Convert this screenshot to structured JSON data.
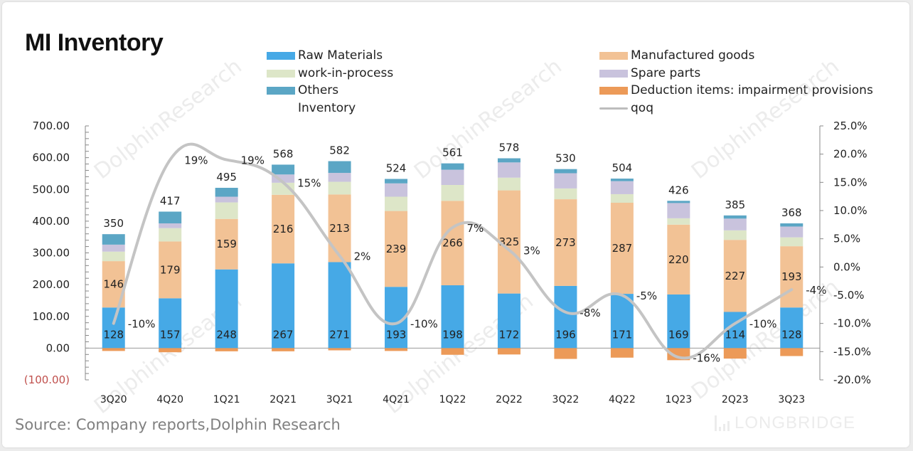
{
  "chart_data": {
    "type": "bar",
    "stacked": true,
    "title": "MI Inventory",
    "categories": [
      "3Q20",
      "4Q20",
      "1Q21",
      "2Q21",
      "3Q21",
      "4Q21",
      "1Q22",
      "2Q22",
      "3Q22",
      "4Q22",
      "1Q23",
      "2Q23",
      "3Q23"
    ],
    "series": [
      {
        "name": "Raw Materials",
        "color": "#46a9e6",
        "values": [
          128,
          157,
          248,
          267,
          271,
          193,
          198,
          172,
          196,
          171,
          169,
          114,
          128
        ],
        "labeled": true
      },
      {
        "name": "Manufactured goods",
        "color": "#f2c295",
        "values": [
          146,
          179,
          159,
          216,
          213,
          239,
          266,
          325,
          273,
          287,
          220,
          227,
          193
        ],
        "labeled": true
      },
      {
        "name": "work-in-process",
        "color": "#dde6c8",
        "values": [
          30,
          42,
          52,
          38,
          40,
          45,
          50,
          40,
          34,
          27,
          20,
          30,
          28
        ]
      },
      {
        "name": "Spare parts",
        "color": "#c9c3dd",
        "values": [
          22,
          15,
          18,
          26,
          28,
          42,
          48,
          48,
          48,
          41,
          48,
          37,
          34
        ]
      },
      {
        "name": "Others",
        "color": "#5ba6c5",
        "values": [
          33,
          37,
          28,
          31,
          37,
          14,
          20,
          13,
          13,
          8,
          7,
          10,
          10
        ]
      },
      {
        "name": "Deduction items: impairment provisions",
        "color": "#ec9a58",
        "values": [
          -9,
          -13,
          -10,
          -10,
          -7,
          -9,
          -21,
          -20,
          -34,
          -30,
          -38,
          -33,
          -25
        ]
      }
    ],
    "totals": {
      "name": "Inventory",
      "values": [
        350,
        417,
        495,
        568,
        582,
        524,
        561,
        578,
        530,
        504,
        426,
        385,
        368
      ]
    },
    "line": {
      "name": "qoq",
      "color": "#c4c4c4",
      "axis": "right",
      "values": [
        -10,
        19,
        19,
        15,
        2,
        -10,
        7,
        3,
        -8,
        -5,
        -16,
        -10,
        -4
      ],
      "labels": [
        "-10%",
        "19%",
        "19%",
        "15%",
        "2%",
        "-10%",
        "7%",
        "3%",
        "-8%",
        "-5%",
        "-16%",
        "-10%",
        "-4%"
      ]
    },
    "y_left": {
      "min": -100,
      "max": 700,
      "step": 100,
      "ticks": [
        "(100.00)",
        "0.00",
        "100.00",
        "200.00",
        "300.00",
        "400.00",
        "500.00",
        "600.00",
        "700.00"
      ],
      "negative_color": "#c0504d"
    },
    "y_right": {
      "min": -20,
      "max": 25,
      "step": 5,
      "ticks": [
        "-20.0%",
        "-15.0%",
        "-10.0%",
        "-5.0%",
        "0.0%",
        "5.0%",
        "10.0%",
        "15.0%",
        "20.0%",
        "25.0%"
      ]
    },
    "legend": {
      "position": "top",
      "entries": [
        "Raw Materials",
        "work-in-process",
        "Others",
        "Inventory",
        "Manufactured goods",
        "Spare parts",
        "Deduction items: impairment provisions",
        "qoq"
      ]
    },
    "grid": false
  },
  "source": "Source: Company reports,Dolphin Research",
  "brand": "LONGBRIDGE",
  "watermark": "DolphinResearch"
}
